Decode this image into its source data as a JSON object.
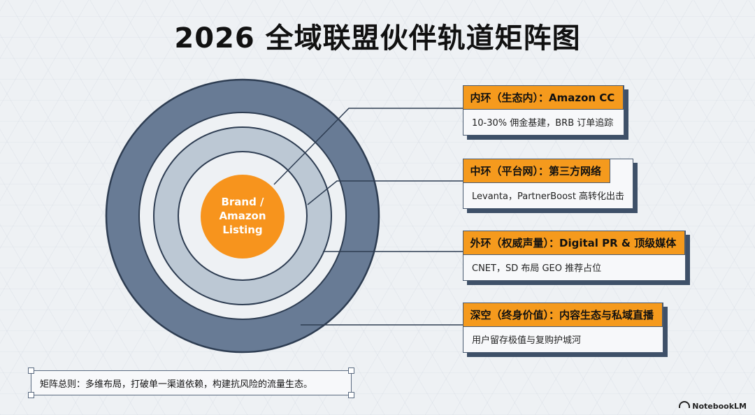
{
  "title": "2026 全域联盟伙伴轨道矩阵图",
  "core": {
    "lines": [
      "Brand /",
      "Amazon",
      "Listing"
    ],
    "color": "#f7941d"
  },
  "rings": {
    "outer_color": "#687b95",
    "middle_color": "#bcc8d4",
    "inner_color": "#eef1f4"
  },
  "cards": [
    {
      "heading": "内环（生态内）：Amazon CC",
      "description": "10-30% 佣金基建，BRB 订单追踪"
    },
    {
      "heading": "中环（平台网）：第三方网络",
      "description": "Levanta，PartnerBoost 高转化出击"
    },
    {
      "heading": "外环（权威声量）：Digital PR & 顶级媒体",
      "description": "CNET，SD 布局 GEO 推荐占位"
    },
    {
      "heading": "深空（终身价值）：内容生态与私域直播",
      "description": "用户留存极值与复购护城河"
    }
  ],
  "summary": "矩阵总则：多维布局，打破单一渠道依赖，构建抗风险的流量生态。",
  "brand": "NotebookLM",
  "accent_color": "#f59a1d"
}
